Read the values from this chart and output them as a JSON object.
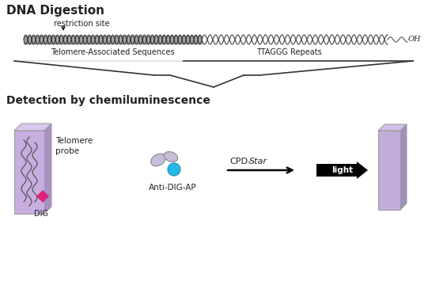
{
  "bg_color": "#ffffff",
  "title_dna": "DNA Digestion",
  "title_detect": "Detection by chemiluminescence",
  "label_restriction": "restriction site",
  "label_telomere_assoc": "Telomere-Associated Sequences",
  "label_ttaggg": "TTAGGG Repeats",
  "label_oh": "OH",
  "label_dig": "DIG",
  "label_anti_dig": "Anti-DIG-AP",
  "label_telomere_probe": "Telomere\nprobe",
  "label_cpd_star": "CPD-Star",
  "label_light": "light",
  "colors": {
    "text_dark": "#222222",
    "dna_dark": "#444444",
    "dna_fill": "#888888",
    "dna_light": "#aaaaaa",
    "arrow": "#222222",
    "membrane": "#c8aee0",
    "membrane_dark": "#a890c8",
    "membrane_top": "#d8c8ec",
    "dig": "#e0207a",
    "antibody_body": "#c8bcd8",
    "antibody_dot": "#28b8e8",
    "film": "#c0aed8",
    "film_dark": "#a090c0",
    "film_top": "#d0c0e8"
  }
}
